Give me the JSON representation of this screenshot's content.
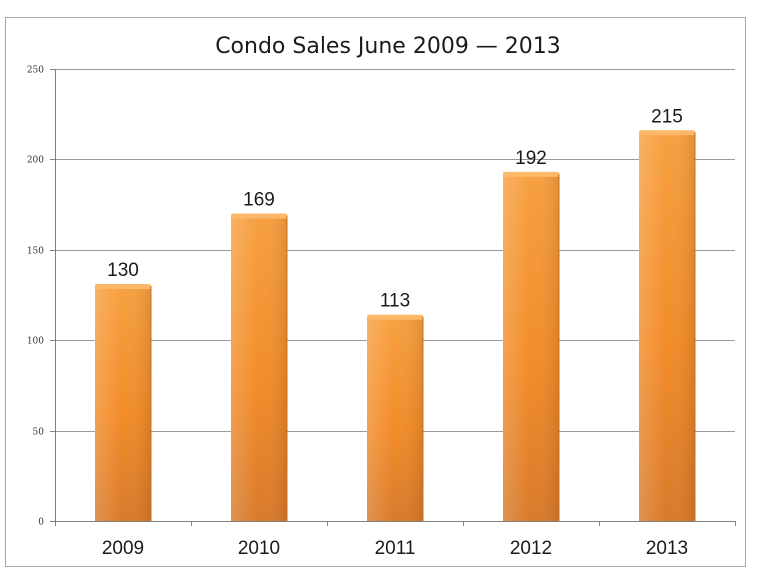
{
  "chart_data": {
    "type": "bar",
    "title": "Condo Sales June 2009 — 2013",
    "xlabel": "",
    "ylabel": "",
    "categories": [
      "2009",
      "2010",
      "2011",
      "2012",
      "2013"
    ],
    "values": [
      130,
      169,
      113,
      192,
      215
    ],
    "data_labels": [
      "130",
      "169",
      "113",
      "192",
      "215"
    ],
    "ylim": [
      0,
      250
    ],
    "yticks": [
      0,
      50,
      100,
      150,
      200,
      250
    ],
    "ytick_labels": [
      "0",
      "50",
      "100",
      "150",
      "200",
      "250"
    ],
    "grid": true,
    "legend": "none",
    "bar_color": "#f28c28",
    "bar_highlight_color": "#fbb869",
    "bar_shadow_color": "#d46d17"
  }
}
